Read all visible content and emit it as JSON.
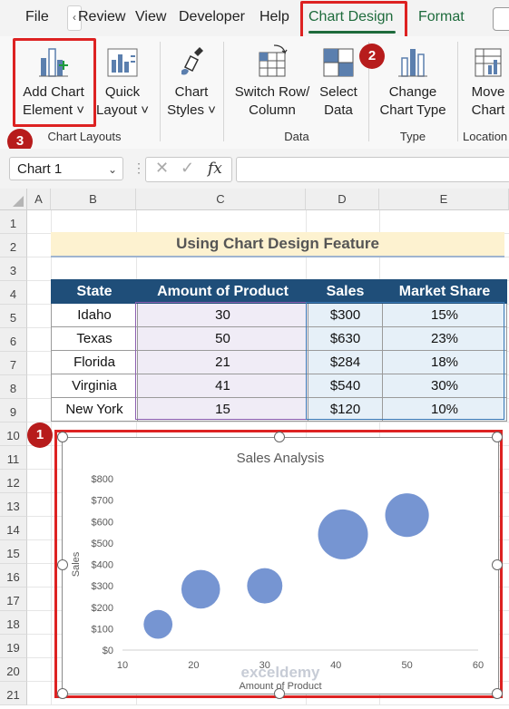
{
  "ribbon_tabs": {
    "file": "File",
    "review": "Review",
    "view": "View",
    "developer": "Developer",
    "help": "Help",
    "chart_design": "Chart Design",
    "format": "Format"
  },
  "ribbon": {
    "add_chart_element": [
      "Add Chart",
      "Element ˅"
    ],
    "quick_layout": [
      "Quick",
      "Layout ˅"
    ],
    "chart_styles": [
      "Chart",
      "Styles ˅"
    ],
    "switch_row_column": [
      "Switch Row/",
      "Column"
    ],
    "select_data": [
      "Select",
      "Data"
    ],
    "change_chart_type": [
      "Change",
      "Chart Type"
    ],
    "move_chart": [
      "Move",
      "Chart"
    ],
    "groups": {
      "chart_layouts": "Chart Layouts",
      "data": "Data",
      "type": "Type",
      "location": "Location"
    }
  },
  "badges": {
    "b1": "1",
    "b2": "2",
    "b3": "3"
  },
  "formula_bar": {
    "name_box": "Chart 1",
    "fx": "fx"
  },
  "columns": [
    "A",
    "B",
    "C",
    "D",
    "E"
  ],
  "rows": [
    "1",
    "2",
    "3",
    "4",
    "5",
    "6",
    "7",
    "8",
    "9",
    "10",
    "11",
    "12",
    "13",
    "14",
    "15",
    "16",
    "17",
    "18",
    "19",
    "20",
    "21"
  ],
  "sheet_title": "Using Chart Design Feature",
  "table": {
    "headers": [
      "State",
      "Amount of Product",
      "Sales",
      "Market Share"
    ],
    "rows": [
      [
        "Idaho",
        "30",
        "$300",
        "15%"
      ],
      [
        "Texas",
        "50",
        "$630",
        "23%"
      ],
      [
        "Florida",
        "21",
        "$284",
        "18%"
      ],
      [
        "Virginia",
        "41",
        "$540",
        "30%"
      ],
      [
        "New York",
        "15",
        "$120",
        "10%"
      ]
    ]
  },
  "colors": {
    "accent_green": "#1e6b3c",
    "header_blue": "#1f4e79",
    "bubble": "#6f8fd0",
    "highlight_red": "#d22222"
  },
  "chart_data": {
    "type": "scatter",
    "title": "Sales Analysis",
    "xlabel": "Amount of Product",
    "ylabel": "Sales",
    "xlim": [
      10,
      60
    ],
    "ylim": [
      0,
      800
    ],
    "x_ticks": [
      "10",
      "20",
      "30",
      "40",
      "50",
      "60"
    ],
    "y_ticks": [
      "$0",
      "$100",
      "$200",
      "$300",
      "$400",
      "$500",
      "$600",
      "$700",
      "$800"
    ],
    "bubbles": [
      {
        "x": 30,
        "y": 300,
        "size": 15
      },
      {
        "x": 50,
        "y": 630,
        "size": 23
      },
      {
        "x": 21,
        "y": 284,
        "size": 18
      },
      {
        "x": 41,
        "y": 540,
        "size": 30
      },
      {
        "x": 15,
        "y": 120,
        "size": 10
      }
    ],
    "grid": false
  },
  "watermark": "exceldemy"
}
